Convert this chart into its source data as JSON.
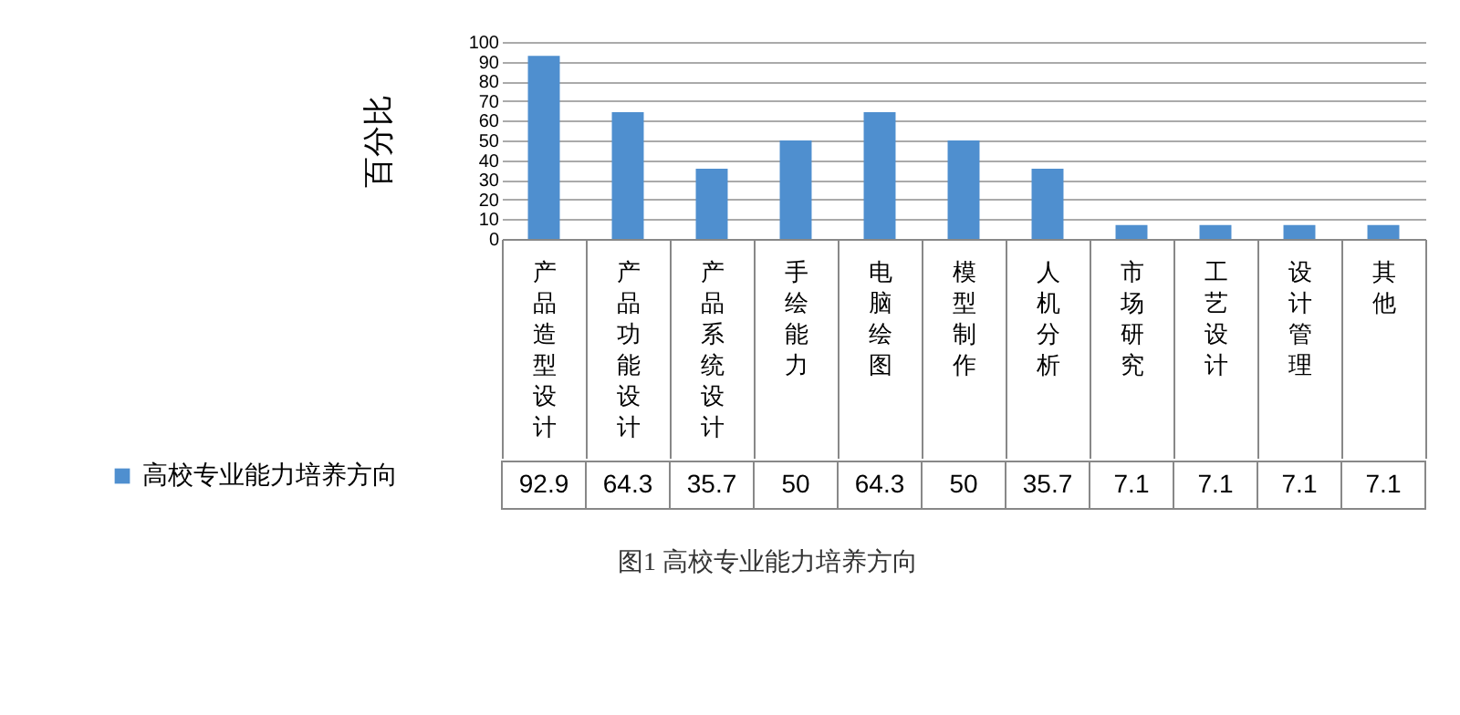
{
  "chart_data": {
    "type": "bar",
    "title": "图1 高校专业能力培养方向",
    "ylabel": "百分比",
    "categories": [
      "产品造型设计",
      "产品功能设计",
      "产品系统设计",
      "手绘能力",
      "电脑绘图",
      "模型制作",
      "人机分析",
      "市场研究",
      "工艺设计",
      "设计管理",
      "其他"
    ],
    "series": [
      {
        "name": "高校专业能力培养方向",
        "color": "#4f8fcf",
        "values": [
          92.9,
          64.3,
          35.7,
          50,
          64.3,
          50,
          35.7,
          7.1,
          7.1,
          7.1,
          7.1
        ]
      }
    ],
    "ylim": [
      0,
      100
    ],
    "yticks": [
      0,
      10,
      20,
      30,
      40,
      50,
      60,
      70,
      80,
      90,
      100
    ],
    "grid": true,
    "data_labels": true,
    "legend": "bottom left"
  }
}
